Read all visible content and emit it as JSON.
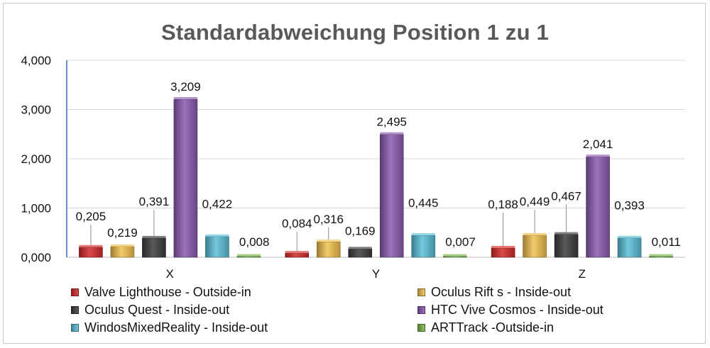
{
  "chart_data": {
    "type": "bar",
    "title": "Standardabweichung Position 1 zu 1",
    "categories": [
      "X",
      "Y",
      "Z"
    ],
    "ylim": [
      0,
      4
    ],
    "yticks": [
      "0,000",
      "1,000",
      "2,000",
      "3,000",
      "4,000"
    ],
    "grid": true,
    "legend_placement": "bottom",
    "series": [
      {
        "name": "Valve Lighthouse - Outside-in",
        "color": "#d42a2a",
        "values": [
          0.205,
          0.084,
          0.188
        ],
        "labels": [
          "0,205",
          "0,084",
          "0,188"
        ]
      },
      {
        "name": "Oculus Rift s - Inside-out",
        "color": "#f2c14e",
        "values": [
          0.219,
          0.316,
          0.449
        ],
        "labels": [
          "0,219",
          "0,316",
          "0,449"
        ]
      },
      {
        "name": "Oculus Quest - Inside-out",
        "color": "#3c3c3c",
        "values": [
          0.391,
          0.169,
          0.467
        ],
        "labels": [
          "0,391",
          "0,169",
          "0,467"
        ]
      },
      {
        "name": "HTC Vive Cosmos - Inside-out",
        "color": "#8a5ab0",
        "values": [
          3.209,
          2.495,
          2.041
        ],
        "labels": [
          "3,209",
          "2,495",
          "2,041"
        ]
      },
      {
        "name": "WindosMixedReality - Inside-out",
        "color": "#5bc0d8",
        "values": [
          0.422,
          0.445,
          0.393
        ],
        "labels": [
          "0,422",
          "0,445",
          "0,393"
        ]
      },
      {
        "name": "ARTTrack -Outside-in",
        "color": "#7ab648",
        "values": [
          0.008,
          0.007,
          0.011
        ],
        "labels": [
          "0,008",
          "0,007",
          "0,011"
        ]
      }
    ]
  }
}
